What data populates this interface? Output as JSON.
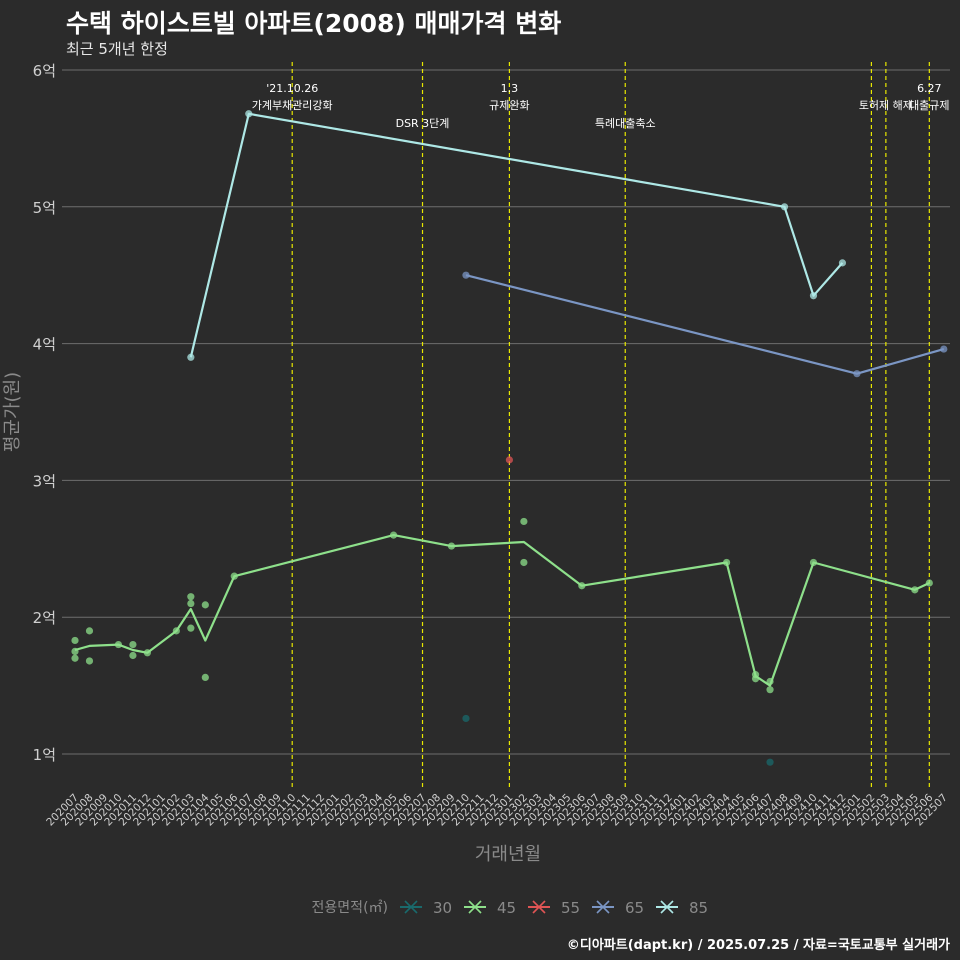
{
  "header": {
    "title": "수택 하이스트빌 아파트(2008) 매매가격 변화",
    "subtitle": "최근 5개년 한정"
  },
  "caption": "©디아파트(dapt.kr) / 2025.07.25 / 자료=국토교통부 실거래가",
  "colors": {
    "background": "#2b2b2b",
    "grid": "#6e6e6e",
    "event_line": "#e8e800",
    "axis_text": "#cfcfcf",
    "axis_title": "#8a8a8a"
  },
  "chart_data": {
    "type": "line",
    "xlabel": "거래년월",
    "ylabel": "평균가(원)",
    "ylim": [
      0.75,
      6.05
    ],
    "grid": true,
    "legend_position": "bottom",
    "legend_title": "전용면적(㎡)",
    "y_ticks": [
      {
        "value": 1,
        "label": "1억"
      },
      {
        "value": 2,
        "label": "2억"
      },
      {
        "value": 3,
        "label": "3억"
      },
      {
        "value": 4,
        "label": "4억"
      },
      {
        "value": 5,
        "label": "5억"
      },
      {
        "value": 6,
        "label": "6억"
      }
    ],
    "x_categories": [
      "202007",
      "202008",
      "202009",
      "202010",
      "202011",
      "202012",
      "202101",
      "202102",
      "202103",
      "202104",
      "202105",
      "202106",
      "202107",
      "202108",
      "202109",
      "202110",
      "202111",
      "202112",
      "202201",
      "202202",
      "202203",
      "202204",
      "202205",
      "202206",
      "202207",
      "202208",
      "202209",
      "202210",
      "202211",
      "202212",
      "202301",
      "202302",
      "202303",
      "202304",
      "202305",
      "202306",
      "202307",
      "202308",
      "202309",
      "202310",
      "202311",
      "202312",
      "202401",
      "202402",
      "202403",
      "202404",
      "202405",
      "202406",
      "202407",
      "202408",
      "202409",
      "202410",
      "202411",
      "202412",
      "202501",
      "202502",
      "202503",
      "202504",
      "202505",
      "202506",
      "202507"
    ],
    "events": [
      {
        "x": "202110",
        "label_lines": [
          "'21.10.26",
          "가계부채관리강화"
        ],
        "label_y": 5.75
      },
      {
        "x": "202207",
        "label_lines": [
          "DSR 3단계"
        ],
        "label_y": 5.62
      },
      {
        "x": "202301",
        "label_lines": [
          "1.3",
          "규제완화"
        ],
        "label_y": 5.75
      },
      {
        "x": "202309",
        "label_lines": [
          "특례대출축소"
        ],
        "label_y": 5.62
      },
      {
        "x": "202502",
        "label_lines": [],
        "label_y": 5.62
      },
      {
        "x": "202503",
        "label_lines": [
          "토허제 해제"
        ],
        "label_y": 5.75
      },
      {
        "x": "202506",
        "label_lines": [
          "6.27",
          "대출규제"
        ],
        "label_y": 5.75
      }
    ],
    "series": [
      {
        "name": "30",
        "color": "#1a6a6c",
        "points": [
          [
            "202210",
            1.26
          ],
          [
            "202407",
            0.94
          ]
        ],
        "line": []
      },
      {
        "name": "45",
        "color": "#8ee08b",
        "points": [
          [
            "202007",
            1.7
          ],
          [
            "202007",
            1.75
          ],
          [
            "202007",
            1.83
          ],
          [
            "202008",
            1.68
          ],
          [
            "202008",
            1.9
          ],
          [
            "202010",
            1.8
          ],
          [
            "202011",
            1.72
          ],
          [
            "202011",
            1.8
          ],
          [
            "202012",
            1.74
          ],
          [
            "202102",
            1.9
          ],
          [
            "202103",
            2.15
          ],
          [
            "202103",
            2.1
          ],
          [
            "202103",
            1.92
          ],
          [
            "202104",
            2.09
          ],
          [
            "202104",
            1.56
          ],
          [
            "202106",
            2.3
          ],
          [
            "202205",
            2.6
          ],
          [
            "202209",
            2.52
          ],
          [
            "202302",
            2.7
          ],
          [
            "202302",
            2.4
          ],
          [
            "202306",
            2.23
          ],
          [
            "202404",
            2.4
          ],
          [
            "202406",
            1.58
          ],
          [
            "202406",
            1.55
          ],
          [
            "202407",
            1.53
          ],
          [
            "202407",
            1.47
          ],
          [
            "202410",
            2.4
          ],
          [
            "202505",
            2.2
          ],
          [
            "202506",
            2.25
          ]
        ],
        "line": [
          [
            "202007",
            1.76
          ],
          [
            "202008",
            1.79
          ],
          [
            "202010",
            1.8
          ],
          [
            "202011",
            1.76
          ],
          [
            "202012",
            1.74
          ],
          [
            "202102",
            1.9
          ],
          [
            "202103",
            2.06
          ],
          [
            "202104",
            1.83
          ],
          [
            "202106",
            2.3
          ],
          [
            "202205",
            2.6
          ],
          [
            "202209",
            2.52
          ],
          [
            "202302",
            2.55
          ],
          [
            "202306",
            2.23
          ],
          [
            "202404",
            2.4
          ],
          [
            "202406",
            1.57
          ],
          [
            "202407",
            1.5
          ],
          [
            "202410",
            2.4
          ],
          [
            "202505",
            2.2
          ],
          [
            "202506",
            2.25
          ]
        ]
      },
      {
        "name": "55",
        "color": "#e05555",
        "points": [
          [
            "202301",
            3.15
          ]
        ],
        "line": []
      },
      {
        "name": "65",
        "color": "#7b96c4",
        "points": [
          [
            "202210",
            4.5
          ],
          [
            "202501",
            3.78
          ],
          [
            "202507",
            3.96
          ]
        ],
        "line": [
          [
            "202210",
            4.5
          ],
          [
            "202501",
            3.78
          ],
          [
            "202507",
            3.96
          ]
        ]
      },
      {
        "name": "85",
        "color": "#aee8e6",
        "points": [
          [
            "202103",
            3.9
          ],
          [
            "202107",
            5.68
          ],
          [
            "202408",
            5.0
          ],
          [
            "202410",
            4.35
          ],
          [
            "202412",
            4.59
          ]
        ],
        "line": [
          [
            "202103",
            3.9
          ],
          [
            "202107",
            5.68
          ],
          [
            "202408",
            5.0
          ],
          [
            "202410",
            4.35
          ],
          [
            "202412",
            4.59
          ]
        ]
      }
    ]
  }
}
